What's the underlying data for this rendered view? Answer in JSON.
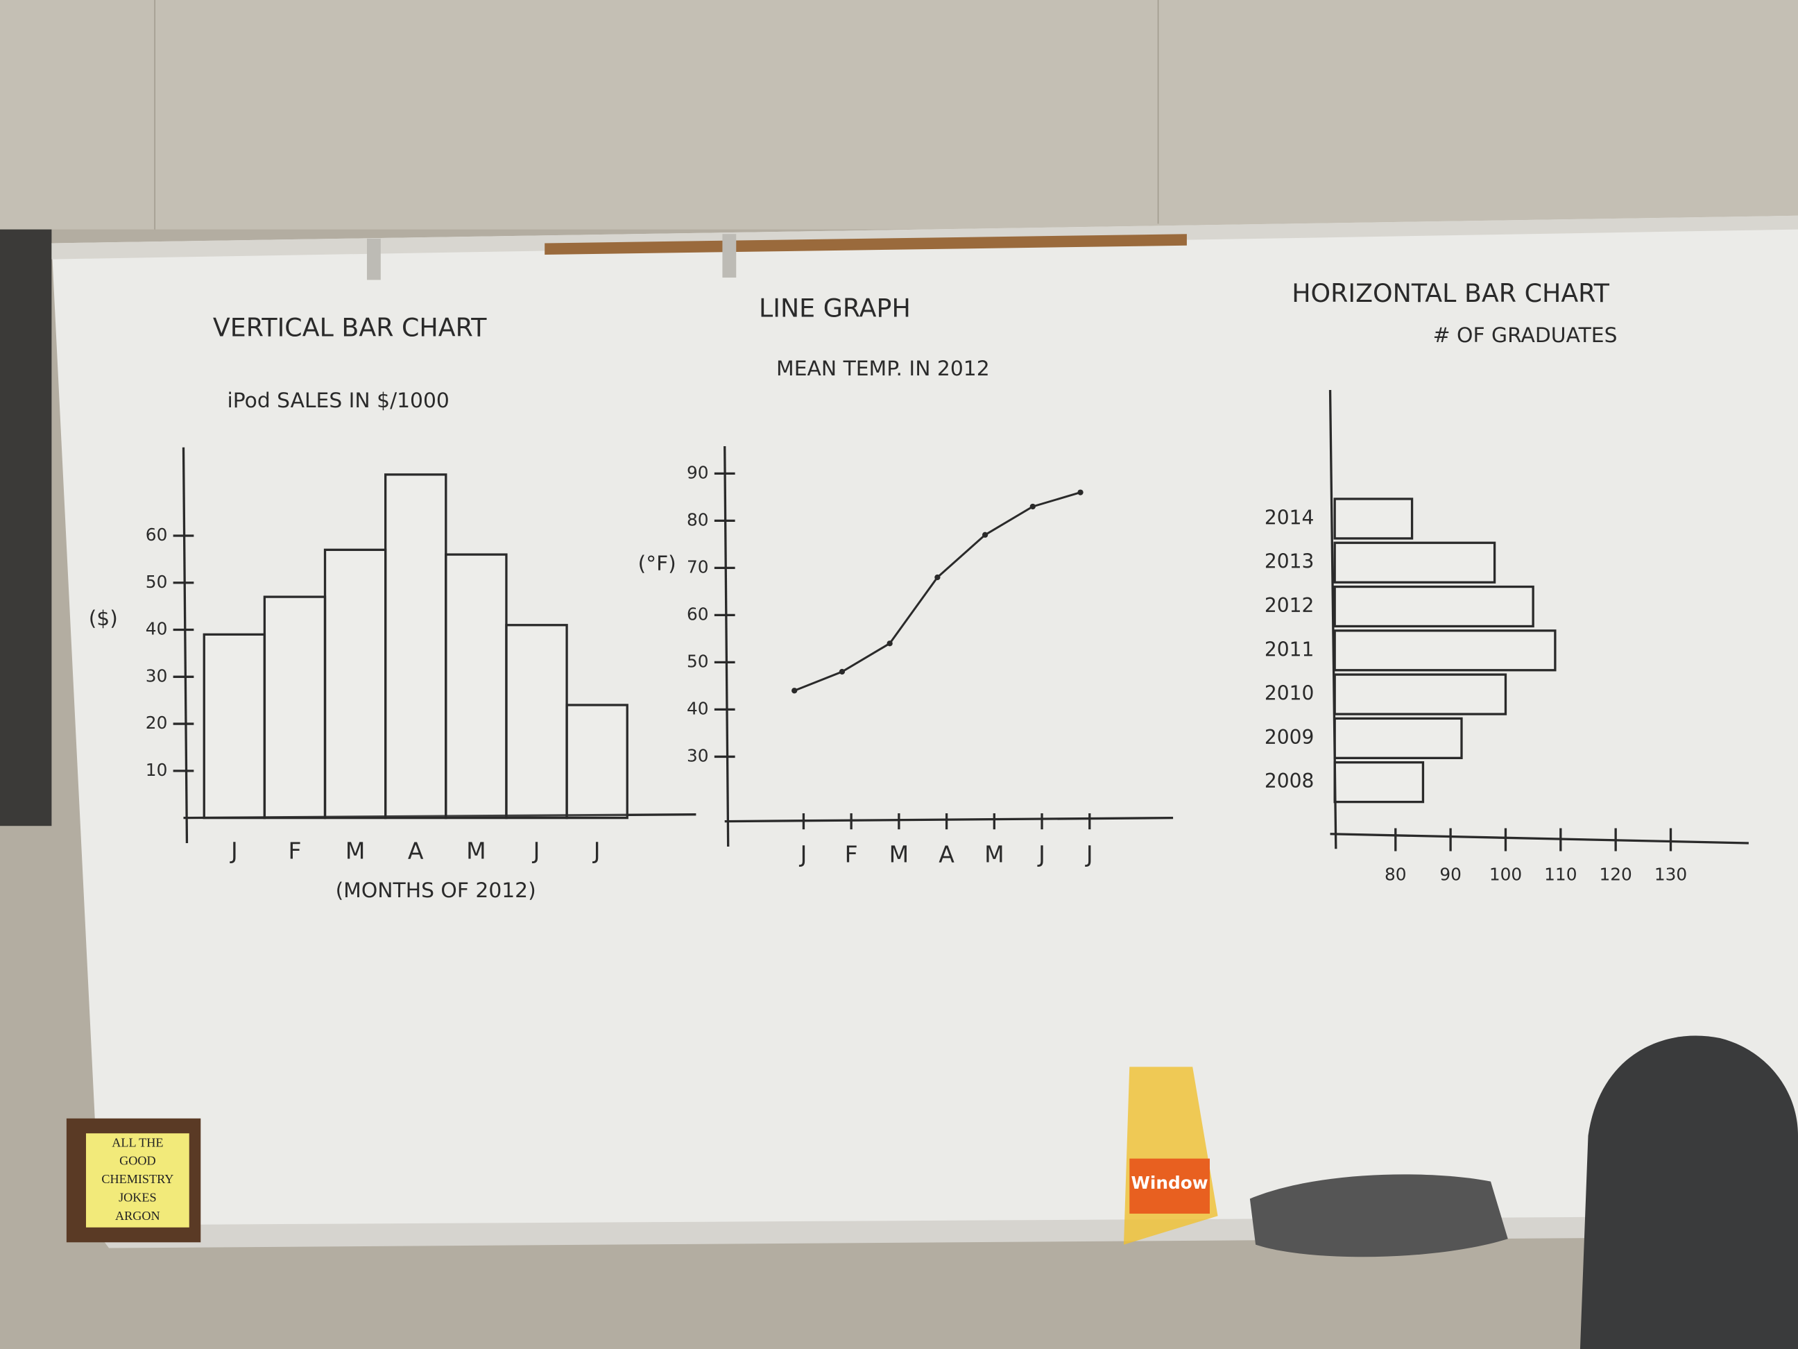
{
  "chart_data": [
    {
      "type": "bar",
      "orientation": "vertical",
      "title": "VERTICAL BAR CHART",
      "subtitle": "iPod SALES IN $/1000",
      "y_label": "($)",
      "x_label": "(MONTHS OF 2012)",
      "categories": [
        "J",
        "F",
        "M",
        "A",
        "M",
        "J",
        "J"
      ],
      "values": [
        39,
        47,
        57,
        73,
        56,
        41,
        24
      ],
      "color": "#2a2a2a",
      "ylim": [
        0,
        80
      ],
      "yticks": [
        10,
        20,
        30,
        40,
        50,
        60
      ],
      "grid": false
    },
    {
      "type": "line",
      "title": "LINE GRAPH",
      "subtitle": "MEAN TEMP. IN 2012",
      "y_label": "(°F)",
      "categories": [
        "J",
        "F",
        "M",
        "A",
        "M",
        "J",
        "J"
      ],
      "values": [
        44,
        48,
        54,
        68,
        77,
        83,
        86
      ],
      "color": "#2a2a2a",
      "ylim": [
        18,
        97
      ],
      "yticks": [
        30,
        40,
        50,
        60,
        70,
        80,
        90
      ],
      "grid": false
    },
    {
      "type": "bar",
      "orientation": "horizontal",
      "title": "HORIZONTAL BAR CHART",
      "subtitle": "# OF GRADUATES",
      "categories": [
        "2014",
        "2013",
        "2012",
        "2011",
        "2010",
        "2009",
        "2008"
      ],
      "values": [
        83,
        98,
        105,
        109,
        100,
        92,
        85
      ],
      "color": "#2a2a2a",
      "xlim": [
        70,
        145
      ],
      "xticks": [
        80,
        90,
        100,
        110,
        120,
        130
      ],
      "grid": false
    }
  ],
  "sign": {
    "lines": [
      "ALL THE",
      "GOOD",
      "CHEMISTRY",
      "JOKES",
      "ARGON"
    ]
  },
  "bottle_label": "Window"
}
